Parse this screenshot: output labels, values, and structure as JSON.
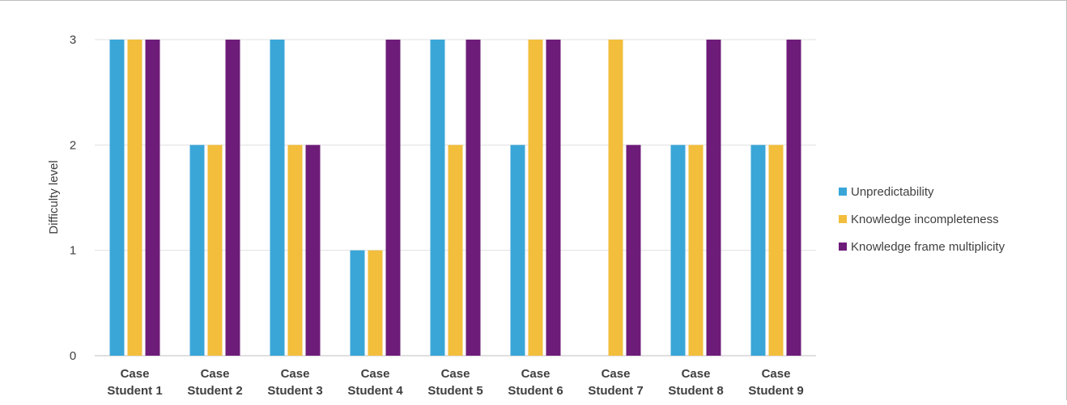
{
  "chart_data": {
    "type": "bar",
    "title": "",
    "xlabel": "",
    "ylabel": "Difficulty level",
    "ylim": [
      0,
      3
    ],
    "yticks": [
      "0",
      "1",
      "2",
      "3"
    ],
    "grid": "horizontal",
    "legend_position": "right",
    "categories": [
      [
        "Case",
        "Student 1"
      ],
      [
        "Case",
        "Student 2"
      ],
      [
        "Case",
        "Student 3"
      ],
      [
        "Case",
        "Student 4"
      ],
      [
        "Case",
        "Student 5"
      ],
      [
        "Case",
        "Student 6"
      ],
      [
        "Case",
        "Student 7"
      ],
      [
        "Case",
        "Student 8"
      ],
      [
        "Case",
        "Student 9"
      ]
    ],
    "series": [
      {
        "name": "Unpredictability",
        "color": "#3aa6d8",
        "values": [
          3,
          2,
          3,
          1,
          3,
          2,
          0,
          2,
          2
        ]
      },
      {
        "name": "Knowledge incompleteness",
        "color": "#f2be3c",
        "values": [
          3,
          2,
          2,
          1,
          2,
          3,
          3,
          2,
          2
        ]
      },
      {
        "name": "Knowledge frame multiplicity",
        "color": "#6e1c7a",
        "values": [
          3,
          3,
          2,
          3,
          3,
          3,
          2,
          3,
          3
        ]
      }
    ]
  }
}
